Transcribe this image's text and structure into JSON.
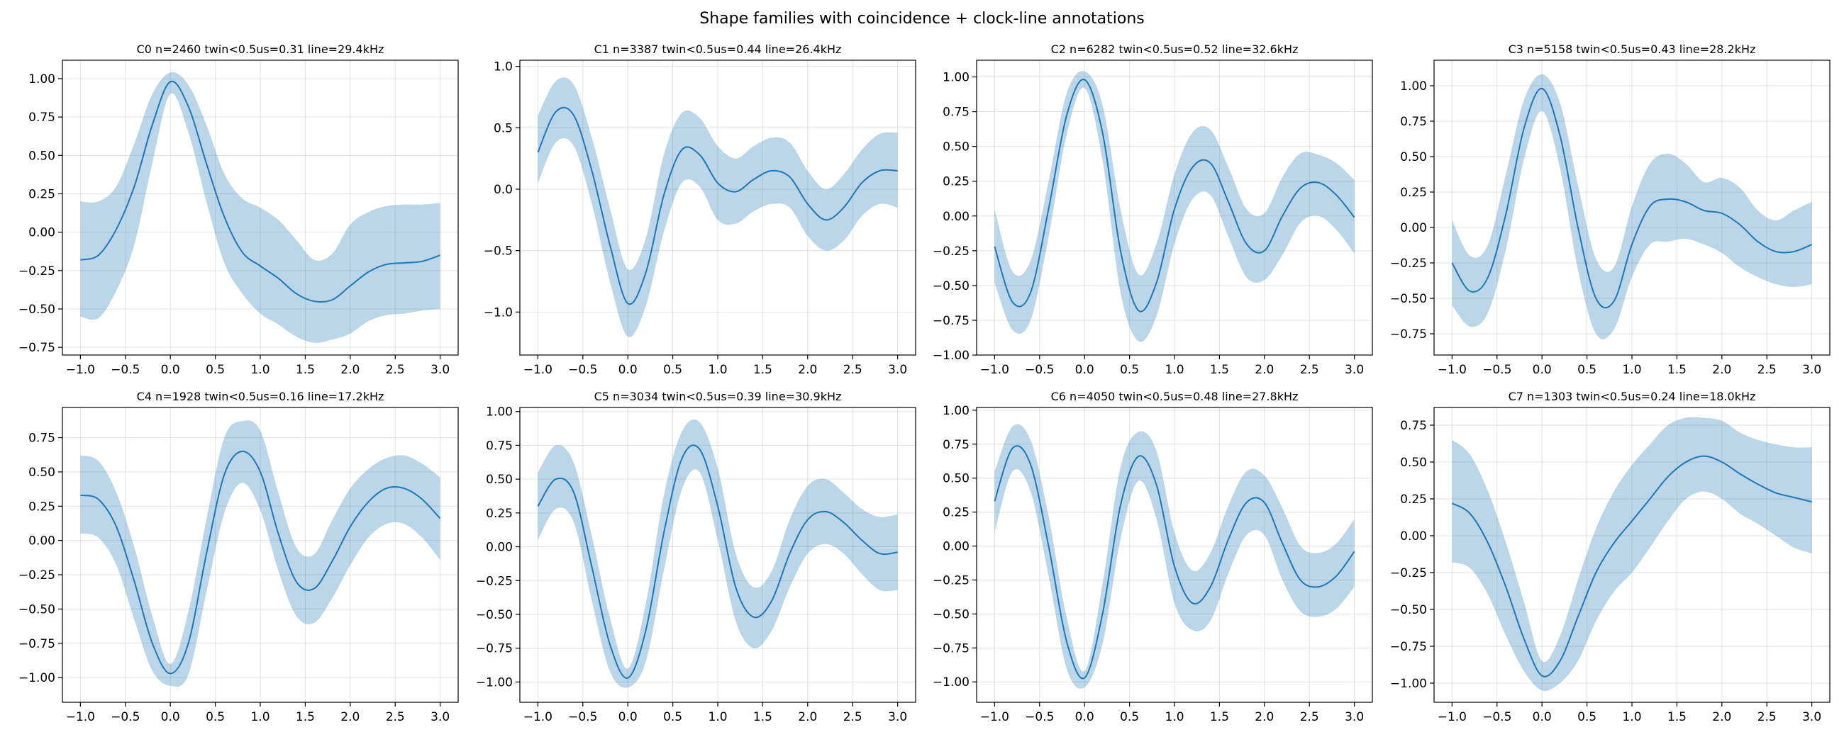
{
  "figure": {
    "title": "Shape families with coincidence + clock-line annotations",
    "colors": {
      "line": "#1f77b4",
      "band": "#1f77b4",
      "band_alpha": 0.3
    }
  },
  "chart_data": [
    {
      "type": "line",
      "title": "C0 n=2460 twin<0.5us=0.31 line=29.4kHz",
      "xlim": [
        -1.2,
        3.2
      ],
      "ylim": [
        -0.8,
        1.12
      ],
      "xticks": [
        "-1.0",
        "-0.5",
        "0.0",
        "0.5",
        "1.0",
        "1.5",
        "2.0",
        "2.5",
        "3.0"
      ],
      "yticks": [
        "-0.75",
        "-0.50",
        "-0.25",
        "0.00",
        "0.25",
        "0.50",
        "0.75",
        "1.00"
      ],
      "grid": true,
      "x": [
        -1.0,
        -0.8,
        -0.6,
        -0.4,
        -0.2,
        0.0,
        0.2,
        0.4,
        0.6,
        0.8,
        1.0,
        1.2,
        1.4,
        1.6,
        1.8,
        2.0,
        2.2,
        2.4,
        2.6,
        2.8,
        3.0
      ],
      "mean": [
        -0.18,
        -0.15,
        0.02,
        0.3,
        0.7,
        0.98,
        0.82,
        0.45,
        0.1,
        -0.13,
        -0.22,
        -0.3,
        -0.4,
        -0.45,
        -0.44,
        -0.35,
        -0.26,
        -0.21,
        -0.2,
        -0.19,
        -0.15
      ],
      "upper": [
        0.2,
        0.2,
        0.3,
        0.58,
        0.9,
        1.04,
        0.96,
        0.7,
        0.38,
        0.22,
        0.16,
        0.08,
        -0.05,
        -0.18,
        -0.14,
        0.05,
        0.13,
        0.17,
        0.18,
        0.18,
        0.19
      ],
      "lower": [
        -0.55,
        -0.56,
        -0.38,
        -0.08,
        0.45,
        0.9,
        0.65,
        0.2,
        -0.2,
        -0.4,
        -0.53,
        -0.6,
        -0.68,
        -0.72,
        -0.7,
        -0.66,
        -0.58,
        -0.54,
        -0.53,
        -0.51,
        -0.5
      ]
    },
    {
      "type": "line",
      "title": "C1 n=3387 twin<0.5us=0.44 line=26.4kHz",
      "xlim": [
        -1.2,
        3.2
      ],
      "ylim": [
        -1.35,
        1.05
      ],
      "xticks": [
        "-1.0",
        "-0.5",
        "0.0",
        "0.5",
        "1.0",
        "1.5",
        "2.0",
        "2.5",
        "3.0"
      ],
      "yticks": [
        "-1.0",
        "-0.5",
        "0.0",
        "0.5",
        "1.0"
      ],
      "grid": true,
      "x": [
        -1.0,
        -0.8,
        -0.6,
        -0.4,
        -0.2,
        0.0,
        0.2,
        0.4,
        0.6,
        0.8,
        1.0,
        1.2,
        1.4,
        1.6,
        1.8,
        2.0,
        2.2,
        2.4,
        2.6,
        2.8,
        3.0
      ],
      "mean": [
        0.3,
        0.63,
        0.6,
        0.15,
        -0.45,
        -0.93,
        -0.68,
        -0.05,
        0.32,
        0.28,
        0.05,
        -0.02,
        0.08,
        0.15,
        0.1,
        -0.12,
        -0.25,
        -0.15,
        0.05,
        0.15,
        0.15
      ],
      "upper": [
        0.6,
        0.88,
        0.85,
        0.42,
        -0.15,
        -0.65,
        -0.4,
        0.28,
        0.62,
        0.58,
        0.35,
        0.25,
        0.35,
        0.42,
        0.38,
        0.15,
        0.0,
        0.12,
        0.32,
        0.45,
        0.46
      ],
      "lower": [
        0.05,
        0.38,
        0.35,
        -0.12,
        -0.75,
        -1.2,
        -0.95,
        -0.35,
        0.05,
        0.02,
        -0.25,
        -0.28,
        -0.18,
        -0.12,
        -0.15,
        -0.38,
        -0.5,
        -0.42,
        -0.22,
        -0.12,
        -0.15
      ]
    },
    {
      "type": "line",
      "title": "C2 n=6282 twin<0.5us=0.52 line=32.6kHz",
      "xlim": [
        -1.2,
        3.2
      ],
      "ylim": [
        -1.0,
        1.12
      ],
      "xticks": [
        "-1.0",
        "-0.5",
        "0.0",
        "0.5",
        "1.0",
        "1.5",
        "2.0",
        "2.5",
        "3.0"
      ],
      "yticks": [
        "-1.00",
        "-0.75",
        "-0.50",
        "-0.25",
        "0.00",
        "0.25",
        "0.50",
        "0.75",
        "1.00"
      ],
      "grid": true,
      "x": [
        -1.0,
        -0.8,
        -0.6,
        -0.4,
        -0.2,
        0.0,
        0.2,
        0.4,
        0.6,
        0.8,
        1.0,
        1.2,
        1.4,
        1.6,
        1.8,
        2.0,
        2.2,
        2.4,
        2.6,
        2.8,
        3.0
      ],
      "mean": [
        -0.22,
        -0.62,
        -0.55,
        0.05,
        0.72,
        0.98,
        0.6,
        -0.25,
        -0.68,
        -0.48,
        0.05,
        0.35,
        0.38,
        0.1,
        -0.2,
        -0.25,
        0.0,
        0.2,
        0.24,
        0.15,
        -0.01
      ],
      "upper": [
        0.05,
        -0.4,
        -0.32,
        0.25,
        0.88,
        1.04,
        0.8,
        0.05,
        -0.42,
        -0.2,
        0.3,
        0.6,
        0.62,
        0.35,
        0.05,
        0.02,
        0.28,
        0.45,
        0.44,
        0.38,
        0.26
      ],
      "lower": [
        -0.48,
        -0.82,
        -0.75,
        -0.15,
        0.58,
        0.92,
        0.4,
        -0.55,
        -0.9,
        -0.72,
        -0.2,
        0.12,
        0.15,
        -0.15,
        -0.44,
        -0.46,
        -0.28,
        -0.05,
        0.0,
        -0.1,
        -0.27
      ]
    },
    {
      "type": "line",
      "title": "C3 n=5158 twin<0.5us=0.43 line=28.2kHz",
      "xlim": [
        -1.2,
        3.2
      ],
      "ylim": [
        -0.9,
        1.18
      ],
      "xticks": [
        "-1.0",
        "-0.5",
        "0.0",
        "0.5",
        "1.0",
        "1.5",
        "2.0",
        "2.5",
        "3.0"
      ],
      "yticks": [
        "-0.75",
        "-0.50",
        "-0.25",
        "0.00",
        "0.25",
        "0.50",
        "0.75",
        "1.00"
      ],
      "grid": true,
      "x": [
        -1.0,
        -0.8,
        -0.6,
        -0.4,
        -0.2,
        0.0,
        0.2,
        0.4,
        0.6,
        0.8,
        1.0,
        1.2,
        1.4,
        1.6,
        1.8,
        2.0,
        2.2,
        2.4,
        2.6,
        2.8,
        3.0
      ],
      "mean": [
        -0.25,
        -0.45,
        -0.35,
        0.1,
        0.7,
        0.98,
        0.65,
        0.0,
        -0.5,
        -0.52,
        -0.12,
        0.15,
        0.2,
        0.18,
        0.12,
        0.1,
        0.02,
        -0.1,
        -0.17,
        -0.17,
        -0.12
      ],
      "upper": [
        0.05,
        -0.2,
        -0.12,
        0.38,
        0.9,
        1.08,
        0.88,
        0.3,
        -0.22,
        -0.28,
        0.15,
        0.45,
        0.52,
        0.45,
        0.32,
        0.35,
        0.28,
        0.12,
        0.05,
        0.12,
        0.18
      ],
      "lower": [
        -0.55,
        -0.7,
        -0.6,
        -0.15,
        0.48,
        0.82,
        0.42,
        -0.3,
        -0.75,
        -0.72,
        -0.35,
        -0.12,
        -0.1,
        -0.08,
        -0.12,
        -0.18,
        -0.28,
        -0.35,
        -0.4,
        -0.42,
        -0.4
      ]
    },
    {
      "type": "line",
      "title": "C4 n=1928 twin<0.5us=0.16 line=17.2kHz",
      "xlim": [
        -1.2,
        3.2
      ],
      "ylim": [
        -1.18,
        0.97
      ],
      "xticks": [
        "-1.0",
        "-0.5",
        "0.0",
        "0.5",
        "1.0",
        "1.5",
        "2.0",
        "2.5",
        "3.0"
      ],
      "yticks": [
        "-1.00",
        "-0.75",
        "-0.50",
        "-0.25",
        "0.00",
        "0.25",
        "0.50",
        "0.75"
      ],
      "grid": true,
      "x": [
        -1.0,
        -0.8,
        -0.6,
        -0.4,
        -0.2,
        0.0,
        0.2,
        0.4,
        0.6,
        0.8,
        1.0,
        1.2,
        1.4,
        1.6,
        1.8,
        2.0,
        2.2,
        2.4,
        2.6,
        2.8,
        3.0
      ],
      "mean": [
        0.33,
        0.3,
        0.1,
        -0.3,
        -0.75,
        -0.97,
        -0.75,
        -0.1,
        0.48,
        0.65,
        0.5,
        0.05,
        -0.3,
        -0.35,
        -0.15,
        0.1,
        0.28,
        0.38,
        0.38,
        0.3,
        0.16
      ],
      "upper": [
        0.62,
        0.58,
        0.35,
        -0.05,
        -0.55,
        -0.9,
        -0.52,
        0.15,
        0.75,
        0.87,
        0.8,
        0.35,
        -0.05,
        -0.1,
        0.15,
        0.38,
        0.52,
        0.6,
        0.62,
        0.56,
        0.46
      ],
      "lower": [
        0.05,
        0.02,
        -0.18,
        -0.58,
        -0.95,
        -1.06,
        -0.98,
        -0.38,
        0.2,
        0.42,
        0.22,
        -0.22,
        -0.55,
        -0.6,
        -0.42,
        -0.18,
        0.02,
        0.12,
        0.12,
        0.02,
        -0.14
      ]
    },
    {
      "type": "line",
      "title": "C5 n=3034 twin<0.5us=0.39 line=30.9kHz",
      "xlim": [
        -1.2,
        3.2
      ],
      "ylim": [
        -1.15,
        1.03
      ],
      "xticks": [
        "-1.0",
        "-0.5",
        "0.0",
        "0.5",
        "1.0",
        "1.5",
        "2.0",
        "2.5",
        "3.0"
      ],
      "yticks": [
        "-1.00",
        "-0.75",
        "-0.50",
        "-0.25",
        "0.00",
        "0.25",
        "0.50",
        "0.75",
        "1.00"
      ],
      "grid": true,
      "x": [
        -1.0,
        -0.8,
        -0.6,
        -0.4,
        -0.2,
        0.0,
        0.2,
        0.4,
        0.6,
        0.8,
        1.0,
        1.2,
        1.4,
        1.6,
        1.8,
        2.0,
        2.2,
        2.4,
        2.6,
        2.8,
        3.0
      ],
      "mean": [
        0.3,
        0.5,
        0.4,
        -0.15,
        -0.72,
        -0.97,
        -0.62,
        0.1,
        0.65,
        0.72,
        0.3,
        -0.3,
        -0.52,
        -0.4,
        -0.05,
        0.2,
        0.26,
        0.18,
        0.05,
        -0.05,
        -0.04
      ],
      "upper": [
        0.55,
        0.75,
        0.62,
        0.08,
        -0.52,
        -0.9,
        -0.42,
        0.38,
        0.85,
        0.92,
        0.58,
        -0.05,
        -0.3,
        -0.18,
        0.2,
        0.45,
        0.5,
        0.4,
        0.28,
        0.22,
        0.24
      ],
      "lower": [
        0.05,
        0.28,
        0.18,
        -0.4,
        -0.92,
        -1.04,
        -0.85,
        -0.18,
        0.42,
        0.55,
        0.05,
        -0.55,
        -0.75,
        -0.62,
        -0.3,
        -0.05,
        0.02,
        -0.05,
        -0.2,
        -0.32,
        -0.32
      ]
    },
    {
      "type": "line",
      "title": "C6 n=4050 twin<0.5us=0.48 line=27.8kHz",
      "xlim": [
        -1.2,
        3.2
      ],
      "ylim": [
        -1.15,
        1.02
      ],
      "xticks": [
        "-1.0",
        "-0.5",
        "0.0",
        "0.5",
        "1.0",
        "1.5",
        "2.0",
        "2.5",
        "3.0"
      ],
      "yticks": [
        "-1.00",
        "-0.75",
        "-0.50",
        "-0.25",
        "0.00",
        "0.25",
        "0.50",
        "0.75",
        "1.00"
      ],
      "grid": true,
      "x": [
        -1.0,
        -0.8,
        -0.6,
        -0.4,
        -0.2,
        0.0,
        0.2,
        0.4,
        0.6,
        0.8,
        1.0,
        1.2,
        1.4,
        1.6,
        1.8,
        2.0,
        2.2,
        2.4,
        2.6,
        2.8,
        3.0
      ],
      "mean": [
        0.33,
        0.72,
        0.6,
        0.0,
        -0.7,
        -0.97,
        -0.5,
        0.3,
        0.66,
        0.45,
        -0.15,
        -0.42,
        -0.3,
        0.05,
        0.32,
        0.32,
        0.02,
        -0.25,
        -0.3,
        -0.22,
        -0.04
      ],
      "upper": [
        0.55,
        0.88,
        0.78,
        0.22,
        -0.52,
        -0.92,
        -0.28,
        0.58,
        0.84,
        0.7,
        0.1,
        -0.18,
        -0.05,
        0.3,
        0.55,
        0.52,
        0.28,
        0.0,
        -0.05,
        0.02,
        0.2
      ],
      "lower": [
        0.1,
        0.55,
        0.4,
        -0.22,
        -0.9,
        -1.04,
        -0.72,
        0.05,
        0.48,
        0.2,
        -0.42,
        -0.62,
        -0.55,
        -0.2,
        0.08,
        0.08,
        -0.25,
        -0.48,
        -0.52,
        -0.46,
        -0.3
      ]
    },
    {
      "type": "line",
      "title": "C7 n=1303 twin<0.5us=0.24 line=18.0kHz",
      "xlim": [
        -1.2,
        3.2
      ],
      "ylim": [
        -1.13,
        0.87
      ],
      "xticks": [
        "-1.0",
        "-0.5",
        "0.0",
        "0.5",
        "1.0",
        "1.5",
        "2.0",
        "2.5",
        "3.0"
      ],
      "yticks": [
        "-1.00",
        "-0.75",
        "-0.50",
        "-0.25",
        "0.00",
        "0.25",
        "0.50",
        "0.75"
      ],
      "grid": true,
      "x": [
        -1.0,
        -0.8,
        -0.6,
        -0.4,
        -0.2,
        0.0,
        0.2,
        0.4,
        0.6,
        0.8,
        1.0,
        1.2,
        1.4,
        1.6,
        1.8,
        2.0,
        2.2,
        2.4,
        2.6,
        2.8,
        3.0
      ],
      "mean": [
        0.22,
        0.15,
        -0.05,
        -0.35,
        -0.7,
        -0.95,
        -0.85,
        -0.55,
        -0.25,
        -0.05,
        0.1,
        0.25,
        0.4,
        0.5,
        0.54,
        0.5,
        0.42,
        0.35,
        0.29,
        0.26,
        0.23
      ],
      "upper": [
        0.65,
        0.55,
        0.3,
        -0.05,
        -0.45,
        -0.85,
        -0.68,
        -0.3,
        0.05,
        0.3,
        0.48,
        0.62,
        0.75,
        0.8,
        0.8,
        0.78,
        0.7,
        0.65,
        0.62,
        0.6,
        0.6
      ],
      "lower": [
        -0.18,
        -0.22,
        -0.4,
        -0.68,
        -0.92,
        -1.05,
        -1.0,
        -0.85,
        -0.58,
        -0.38,
        -0.25,
        -0.08,
        0.1,
        0.25,
        0.3,
        0.25,
        0.15,
        0.08,
        0.0,
        -0.08,
        -0.12
      ]
    }
  ]
}
